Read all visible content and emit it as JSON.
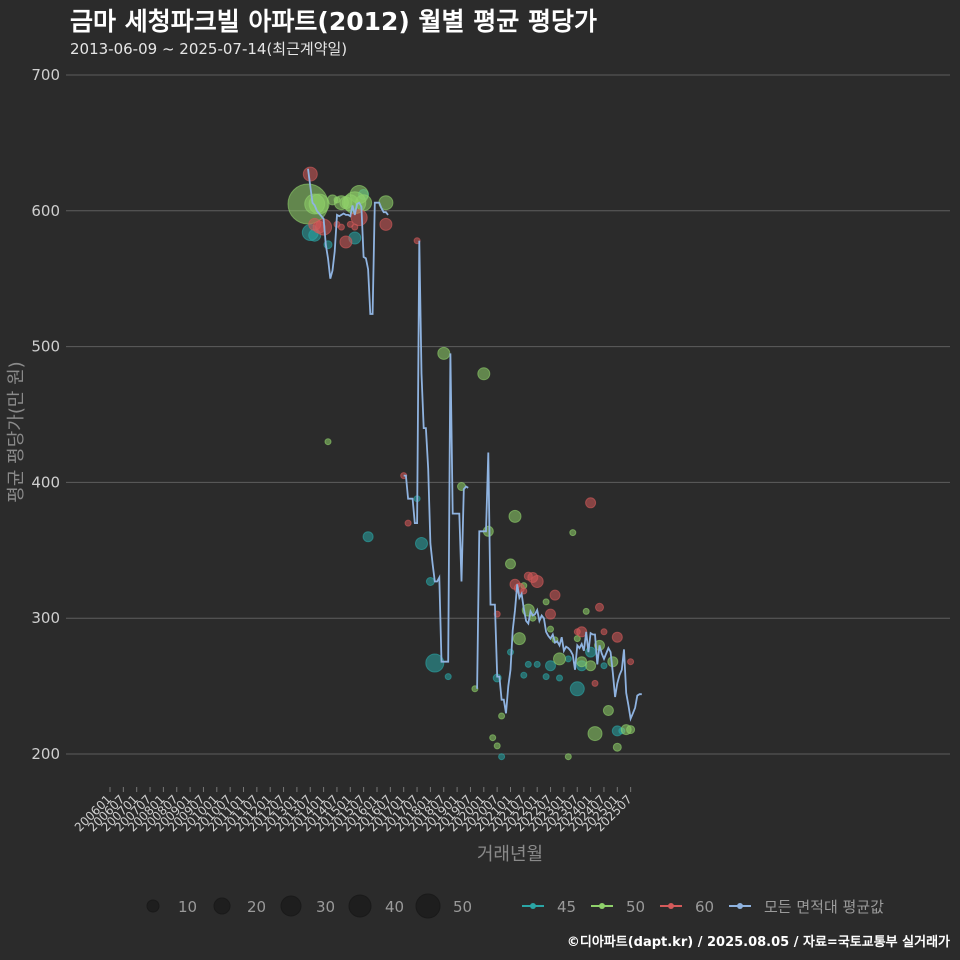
{
  "title": "금마 세청파크빌 아파트(2012) 월별 평균 평당가",
  "subtitle": "2013-06-09 ~ 2025-07-14(최근계약일)",
  "credit": "©디아파트(dapt.kr) / 2025.08.05 / 자료=국토교통부 실거래가",
  "chart_data": {
    "type": "scatter",
    "xlabel": "거래년월",
    "ylabel": "평균 평당가(만 원)",
    "ylim": [
      200,
      700
    ],
    "yticks": [
      200,
      300,
      400,
      500,
      600,
      700
    ],
    "xticks": [
      "200601",
      "200607",
      "200701",
      "200707",
      "200801",
      "200807",
      "200901",
      "200907",
      "201001",
      "201007",
      "201101",
      "201107",
      "201201",
      "201207",
      "201301",
      "201307",
      "201401",
      "201407",
      "201501",
      "201507",
      "201601",
      "201607",
      "201701",
      "201707",
      "201801",
      "201807",
      "201901",
      "201907",
      "202001",
      "202007",
      "202101",
      "202107",
      "202201",
      "202207",
      "202301",
      "202307",
      "202401",
      "202407",
      "202501",
      "202507"
    ],
    "grid": true,
    "size_legend": {
      "values": [
        10,
        20,
        30,
        40,
        50
      ]
    },
    "series": [
      {
        "name": "45",
        "color": "#2aa6a6",
        "points": [
          [
            "2013-07",
            584,
            8
          ],
          [
            "2013-09",
            582,
            6
          ],
          [
            "2014-03",
            575,
            4
          ],
          [
            "2015-03",
            580,
            6
          ],
          [
            "2015-07",
            612,
            5
          ],
          [
            "2015-09",
            360,
            5
          ],
          [
            "2017-07",
            388,
            3
          ],
          [
            "2017-09",
            355,
            6
          ],
          [
            "2018-01",
            327,
            4
          ],
          [
            "2018-03",
            267,
            9
          ],
          [
            "2018-09",
            257,
            3
          ],
          [
            "2020-07",
            256,
            4
          ],
          [
            "2020-09",
            198,
            3
          ],
          [
            "2021-01",
            275,
            3
          ],
          [
            "2021-07",
            258,
            3
          ],
          [
            "2021-09",
            266,
            3
          ],
          [
            "2022-01",
            266,
            3
          ],
          [
            "2022-05",
            257,
            3
          ],
          [
            "2022-07",
            265,
            5
          ],
          [
            "2022-11",
            256,
            3
          ],
          [
            "2023-03",
            270,
            3
          ],
          [
            "2023-07",
            248,
            7
          ],
          [
            "2023-09",
            265,
            5
          ],
          [
            "2024-01",
            275,
            5
          ],
          [
            "2024-07",
            265,
            3
          ],
          [
            "2025-01",
            217,
            5
          ],
          [
            "2025-03",
            217,
            3
          ]
        ]
      },
      {
        "name": "50",
        "color": "#8fd16a",
        "points": [
          [
            "2013-06",
            605,
            20
          ],
          [
            "2013-09",
            605,
            10
          ],
          [
            "2013-11",
            605,
            10
          ],
          [
            "2014-03",
            430,
            3
          ],
          [
            "2014-05",
            608,
            5
          ],
          [
            "2014-07",
            608,
            3
          ],
          [
            "2014-09",
            606,
            7
          ],
          [
            "2014-11",
            606,
            6
          ],
          [
            "2015-01",
            606,
            8
          ],
          [
            "2015-03",
            606,
            11
          ],
          [
            "2015-05",
            612,
            9
          ],
          [
            "2015-07",
            606,
            8
          ],
          [
            "2016-05",
            606,
            7
          ],
          [
            "2018-07",
            495,
            6
          ],
          [
            "2019-03",
            397,
            4
          ],
          [
            "2019-09",
            248,
            3
          ],
          [
            "2020-01",
            480,
            6
          ],
          [
            "2020-03",
            364,
            5
          ],
          [
            "2020-05",
            212,
            3
          ],
          [
            "2020-07",
            206,
            3
          ],
          [
            "2020-09",
            228,
            3
          ],
          [
            "2021-01",
            340,
            5
          ],
          [
            "2021-03",
            375,
            6
          ],
          [
            "2021-05",
            285,
            6
          ],
          [
            "2021-07",
            324,
            3
          ],
          [
            "2021-09",
            306,
            6
          ],
          [
            "2021-11",
            300,
            3
          ],
          [
            "2022-05",
            312,
            3
          ],
          [
            "2022-07",
            292,
            3
          ],
          [
            "2022-09",
            284,
            3
          ],
          [
            "2022-11",
            270,
            6
          ],
          [
            "2023-03",
            198,
            3
          ],
          [
            "2023-05",
            363,
            3
          ],
          [
            "2023-07",
            285,
            3
          ],
          [
            "2023-09",
            268,
            5
          ],
          [
            "2023-11",
            305,
            3
          ],
          [
            "2024-01",
            265,
            5
          ],
          [
            "2024-03",
            215,
            7
          ],
          [
            "2024-05",
            280,
            5
          ],
          [
            "2024-09",
            232,
            5
          ],
          [
            "2024-11",
            268,
            5
          ],
          [
            "2025-01",
            205,
            4
          ],
          [
            "2025-05",
            218,
            5
          ],
          [
            "2025-07",
            218,
            4
          ]
        ]
      },
      {
        "name": "60",
        "color": "#d45a5a",
        "points": [
          [
            "2013-07",
            627,
            7
          ],
          [
            "2013-09",
            590,
            6
          ],
          [
            "2013-11",
            588,
            6
          ],
          [
            "2014-01",
            588,
            8
          ],
          [
            "2014-07",
            590,
            3
          ],
          [
            "2014-09",
            588,
            3
          ],
          [
            "2014-11",
            577,
            6
          ],
          [
            "2015-01",
            590,
            3
          ],
          [
            "2015-03",
            588,
            3
          ],
          [
            "2015-05",
            595,
            8
          ],
          [
            "2016-05",
            590,
            6
          ],
          [
            "2017-01",
            405,
            3
          ],
          [
            "2017-03",
            370,
            3
          ],
          [
            "2017-07",
            578,
            3
          ],
          [
            "2020-07",
            303,
            3
          ],
          [
            "2021-03",
            325,
            5
          ],
          [
            "2021-05",
            322,
            5
          ],
          [
            "2021-07",
            320,
            3
          ],
          [
            "2021-09",
            331,
            4
          ],
          [
            "2021-11",
            330,
            5
          ],
          [
            "2022-01",
            327,
            6
          ],
          [
            "2022-07",
            303,
            5
          ],
          [
            "2022-09",
            317,
            5
          ],
          [
            "2023-07",
            290,
            3
          ],
          [
            "2023-09",
            290,
            5
          ],
          [
            "2024-01",
            385,
            5
          ],
          [
            "2024-03",
            252,
            3
          ],
          [
            "2024-05",
            308,
            4
          ],
          [
            "2024-07",
            290,
            3
          ],
          [
            "2025-01",
            286,
            5
          ],
          [
            "2025-07",
            268,
            3
          ]
        ]
      }
    ],
    "average": {
      "name": "모든 면적대 평균값",
      "color": "#8fb3e0",
      "segments": [
        [
          [
            "2013-06",
            631
          ],
          [
            "2013-07",
            618
          ],
          [
            "2013-08",
            606
          ],
          [
            "2013-09",
            604
          ],
          [
            "2013-10",
            600
          ],
          [
            "2013-11",
            598
          ],
          [
            "2013-12",
            596
          ],
          [
            "2014-01",
            594
          ],
          [
            "2014-02",
            575
          ],
          [
            "2014-03",
            565
          ],
          [
            "2014-04",
            550
          ],
          [
            "2014-05",
            556
          ],
          [
            "2014-06",
            570
          ],
          [
            "2014-07",
            597
          ],
          [
            "2014-08",
            596
          ],
          [
            "2014-09",
            597
          ],
          [
            "2014-10",
            598
          ],
          [
            "2014-11",
            597
          ],
          [
            "2014-12",
            597
          ],
          [
            "2015-01",
            596
          ],
          [
            "2015-02",
            604
          ],
          [
            "2015-03",
            597
          ],
          [
            "2015-04",
            605
          ],
          [
            "2015-05",
            606
          ],
          [
            "2015-06",
            603
          ],
          [
            "2015-07",
            566
          ],
          [
            "2015-08",
            565
          ],
          [
            "2015-09",
            557
          ],
          [
            "2015-10",
            524
          ],
          [
            "2015-11",
            524
          ],
          [
            "2015-12",
            606
          ],
          [
            "2016-01",
            606
          ],
          [
            "2016-02",
            606
          ],
          [
            "2016-03",
            602
          ],
          [
            "2016-04",
            599
          ],
          [
            "2016-05",
            599
          ],
          [
            "2016-06",
            597
          ]
        ],
        [
          [
            "2017-01",
            405
          ],
          [
            "2017-02",
            405
          ],
          [
            "2017-03",
            388
          ],
          [
            "2017-04",
            388
          ],
          [
            "2017-05",
            388
          ],
          [
            "2017-06",
            370
          ],
          [
            "2017-07",
            370
          ],
          [
            "2017-08",
            578
          ],
          [
            "2017-09",
            480
          ],
          [
            "2017-10",
            440
          ],
          [
            "2017-11",
            440
          ],
          [
            "2017-12",
            410
          ],
          [
            "2018-01",
            355
          ],
          [
            "2018-02",
            340
          ],
          [
            "2018-03",
            327
          ],
          [
            "2018-04",
            327
          ],
          [
            "2018-05",
            330
          ],
          [
            "2018-06",
            268
          ],
          [
            "2018-07",
            268
          ],
          [
            "2018-08",
            268
          ],
          [
            "2018-09",
            268
          ],
          [
            "2018-10",
            495
          ],
          [
            "2018-11",
            377
          ],
          [
            "2018-12",
            377
          ],
          [
            "2019-01",
            377
          ],
          [
            "2019-02",
            377
          ],
          [
            "2019-03",
            327
          ],
          [
            "2019-04",
            395
          ],
          [
            "2019-05",
            397
          ],
          [
            "2019-06",
            396
          ]
        ],
        [
          [
            "2019-10",
            248
          ],
          [
            "2019-11",
            364
          ],
          [
            "2019-12",
            364
          ],
          [
            "2020-01",
            364
          ],
          [
            "2020-02",
            364
          ],
          [
            "2020-03",
            422
          ],
          [
            "2020-04",
            310
          ],
          [
            "2020-05",
            310
          ],
          [
            "2020-06",
            310
          ],
          [
            "2020-07",
            257
          ],
          [
            "2020-08",
            257
          ],
          [
            "2020-09",
            240
          ],
          [
            "2020-10",
            240
          ],
          [
            "2020-11",
            230
          ],
          [
            "2020-12",
            250
          ],
          [
            "2021-01",
            262
          ],
          [
            "2021-02",
            291
          ],
          [
            "2021-03",
            306
          ],
          [
            "2021-04",
            325
          ],
          [
            "2021-05",
            315
          ],
          [
            "2021-06",
            318
          ],
          [
            "2021-07",
            307
          ],
          [
            "2021-08",
            298
          ],
          [
            "2021-09",
            296
          ],
          [
            "2021-10",
            305
          ],
          [
            "2021-11",
            302
          ],
          [
            "2021-12",
            303
          ],
          [
            "2022-01",
            306
          ],
          [
            "2022-02",
            298
          ],
          [
            "2022-03",
            302
          ],
          [
            "2022-04",
            300
          ],
          [
            "2022-05",
            290
          ],
          [
            "2022-06",
            287
          ],
          [
            "2022-07",
            285
          ],
          [
            "2022-08",
            288
          ],
          [
            "2022-09",
            282
          ],
          [
            "2022-10",
            283
          ],
          [
            "2022-11",
            280
          ],
          [
            "2022-12",
            286
          ],
          [
            "2023-01",
            276
          ],
          [
            "2023-02",
            279
          ],
          [
            "2023-03",
            278
          ],
          [
            "2023-04",
            276
          ],
          [
            "2023-05",
            273
          ],
          [
            "2023-06",
            262
          ],
          [
            "2023-07",
            280
          ],
          [
            "2023-08",
            278
          ],
          [
            "2023-09",
            281
          ],
          [
            "2023-10",
            276
          ],
          [
            "2023-11",
            290
          ],
          [
            "2023-12",
            275
          ],
          [
            "2024-01",
            289
          ],
          [
            "2024-02",
            288
          ],
          [
            "2024-03",
            288
          ],
          [
            "2024-04",
            266
          ],
          [
            "2024-05",
            280
          ],
          [
            "2024-06",
            274
          ],
          [
            "2024-07",
            270
          ],
          [
            "2024-08",
            274
          ],
          [
            "2024-09",
            278
          ],
          [
            "2024-10",
            275
          ],
          [
            "2024-11",
            260
          ],
          [
            "2024-12",
            242
          ],
          [
            "2025-01",
            252
          ],
          [
            "2025-02",
            258
          ],
          [
            "2025-03",
            262
          ],
          [
            "2025-04",
            277
          ],
          [
            "2025-05",
            245
          ],
          [
            "2025-06",
            236
          ],
          [
            "2025-07",
            226
          ],
          [
            "2025-08",
            230
          ],
          [
            "2025-09",
            234
          ],
          [
            "2025-10",
            243
          ],
          [
            "2025-11",
            244
          ],
          [
            "2025-12",
            244
          ]
        ]
      ]
    }
  }
}
